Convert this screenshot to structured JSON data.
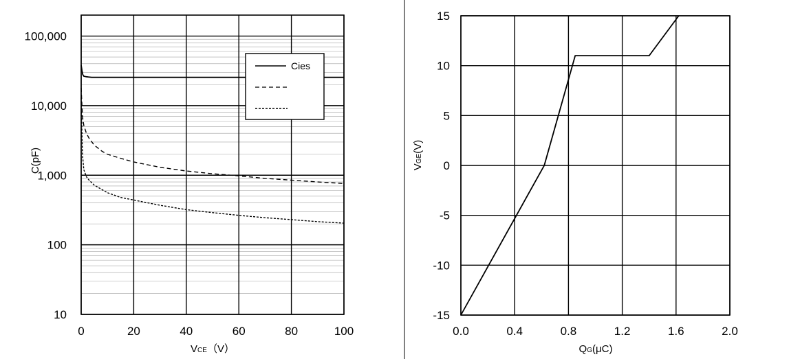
{
  "chart_data": [
    {
      "type": "line",
      "title": "",
      "xlabel": "V_CE（V）",
      "xlabel_main": "V",
      "xlabel_sub": "CE",
      "xlabel_unit": "（V）",
      "ylabel": "C(pF)",
      "yscale": "log",
      "xlim": [
        0,
        100
      ],
      "ylim": [
        10,
        200000
      ],
      "x_ticks": [
        0,
        20,
        40,
        60,
        80,
        100
      ],
      "x_tick_labels": [
        "0",
        "20",
        "40",
        "60",
        "80",
        "100"
      ],
      "y_ticks": [
        10,
        100,
        1000,
        10000,
        100000
      ],
      "y_tick_labels": [
        "10",
        "100",
        "1,000",
        "10,000",
        "100,000"
      ],
      "grid": true,
      "legend_position": "top-right",
      "series": [
        {
          "name": "Cies",
          "style": "solid",
          "x": [
            0,
            0.3,
            0.6,
            1,
            2,
            4,
            6,
            10,
            20,
            40,
            60,
            80,
            100
          ],
          "y": [
            38000,
            32000,
            28000,
            26500,
            26000,
            25500,
            25500,
            25500,
            25500,
            25500,
            25500,
            25500,
            25500
          ]
        },
        {
          "style": "dashed",
          "x": [
            0,
            0.2,
            0.5,
            1,
            2,
            3,
            5,
            8,
            10,
            15,
            20,
            30,
            40,
            50,
            60,
            70,
            80,
            90,
            100
          ],
          "y": [
            18000,
            12000,
            7000,
            5200,
            4000,
            3400,
            2700,
            2200,
            2000,
            1750,
            1550,
            1300,
            1150,
            1050,
            980,
            900,
            850,
            800,
            760
          ]
        },
        {
          "style": "dotted",
          "x": [
            0,
            0.2,
            0.4,
            0.6,
            1,
            2,
            3,
            5,
            10,
            15,
            20,
            30,
            40,
            50,
            60,
            70,
            80,
            90,
            100
          ],
          "y": [
            13000,
            6000,
            2800,
            1800,
            1200,
            950,
            850,
            720,
            560,
            480,
            440,
            370,
            320,
            290,
            265,
            245,
            230,
            215,
            205
          ]
        }
      ]
    },
    {
      "type": "line",
      "title": "",
      "xlabel": "Q_G(μC)",
      "xlabel_main": "Q",
      "xlabel_sub": "G",
      "xlabel_unit": "(μC)",
      "ylabel": "V_GE(V)",
      "ylabel_main": "V",
      "ylabel_sub": "GE",
      "ylabel_unit": "(V)",
      "xlim": [
        0,
        2.0
      ],
      "ylim": [
        -15,
        15
      ],
      "x_ticks": [
        0.0,
        0.4,
        0.8,
        1.2,
        1.6,
        2.0
      ],
      "x_tick_labels": [
        "0.0",
        "0.4",
        "0.8",
        "1.2",
        "1.6",
        "2.0"
      ],
      "y_ticks": [
        -15,
        -10,
        -5,
        0,
        5,
        10,
        15
      ],
      "y_tick_labels": [
        "-15",
        "-10",
        "-5",
        "0",
        "5",
        "10",
        "15"
      ],
      "grid": true,
      "series": [
        {
          "style": "solid",
          "x": [
            0.0,
            0.62,
            0.85,
            1.4,
            1.62
          ],
          "y": [
            -15,
            0,
            11,
            11,
            15
          ]
        }
      ]
    }
  ]
}
